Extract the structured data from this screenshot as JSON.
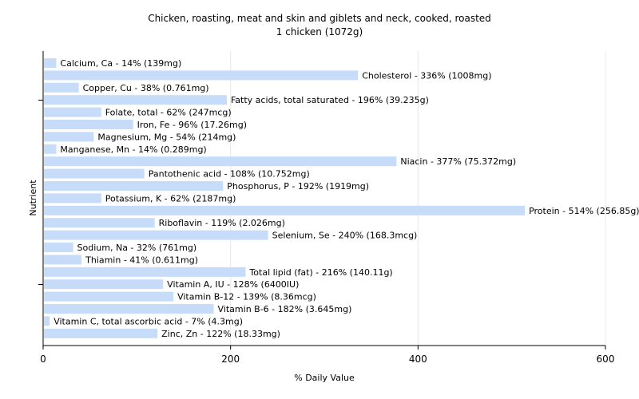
{
  "chart_data": {
    "type": "bar",
    "orientation": "horizontal",
    "title": "Chicken, roasting, meat and skin and giblets and neck, cooked, roasted",
    "subtitle": "1 chicken (1072g)",
    "xlabel": "% Daily Value",
    "ylabel": "Nutrient",
    "xlim": [
      0,
      600
    ],
    "xticks": [
      "0",
      "200",
      "400",
      "600"
    ],
    "grid": true,
    "bar_color": "#c6dcf8",
    "categories": [
      "Calcium, Ca",
      "Cholesterol",
      "Copper, Cu",
      "Fatty acids, total saturated",
      "Folate, total",
      "Iron, Fe",
      "Magnesium, Mg",
      "Manganese, Mn",
      "Niacin",
      "Pantothenic acid",
      "Phosphorus, P",
      "Potassium, K",
      "Protein",
      "Riboflavin",
      "Selenium, Se",
      "Sodium, Na",
      "Thiamin",
      "Total lipid (fat)",
      "Vitamin A, IU",
      "Vitamin B-12",
      "Vitamin B-6",
      "Vitamin C, total ascorbic acid",
      "Zinc, Zn"
    ],
    "values": [
      14,
      336,
      38,
      196,
      62,
      96,
      54,
      14,
      377,
      108,
      192,
      62,
      514,
      119,
      240,
      32,
      41,
      216,
      128,
      139,
      182,
      7,
      122
    ],
    "labels": [
      "Calcium, Ca - 14% (139mg)",
      "Cholesterol - 336% (1008mg)",
      "Copper, Cu - 38% (0.761mg)",
      "Fatty acids, total saturated - 196% (39.235g)",
      "Folate, total - 62% (247mcg)",
      "Iron, Fe - 96% (17.26mg)",
      "Magnesium, Mg - 54% (214mg)",
      "Manganese, Mn - 14% (0.289mg)",
      "Niacin - 377% (75.372mg)",
      "Pantothenic acid - 108% (10.752mg)",
      "Phosphorus, P - 192% (1919mg)",
      "Potassium, K - 62% (2187mg)",
      "Protein - 514% (256.85g)",
      "Riboflavin - 119% (2.026mg)",
      "Selenium, Se - 240% (168.3mcg)",
      "Sodium, Na - 32% (761mg)",
      "Thiamin - 41% (0.611mg)",
      "Total lipid (fat) - 216% (140.11g)",
      "Vitamin A, IU - 128% (6400IU)",
      "Vitamin B-12 - 139% (8.36mcg)",
      "Vitamin B-6 - 182% (3.645mg)",
      "Vitamin C, total ascorbic acid - 7% (4.3mg)",
      "Zinc, Zn - 122% (18.33mg)"
    ]
  }
}
